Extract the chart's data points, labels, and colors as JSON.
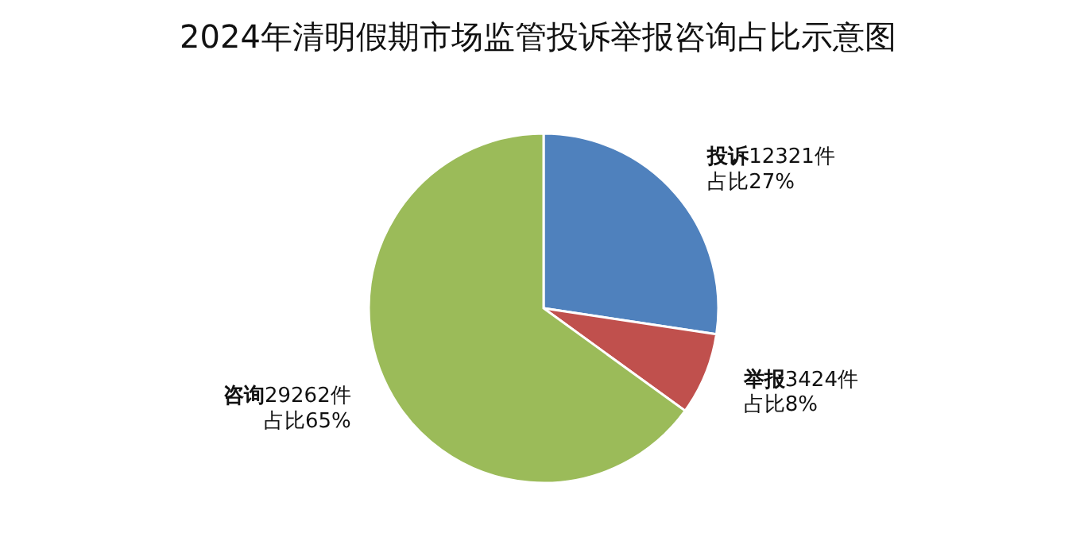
{
  "chart_data": {
    "type": "pie",
    "title": "2024年清明假期市场监管投诉举报咨询占比示意图",
    "categories": [
      "投诉",
      "举报",
      "咨询"
    ],
    "values": [
      12321,
      3424,
      29262
    ],
    "colors": [
      "#4f81bd",
      "#c0504d",
      "#9bbb59"
    ],
    "value_labels": [
      "12321件占比27%",
      "3424件占比8%",
      "29262件占比65%"
    ],
    "legend": false
  }
}
